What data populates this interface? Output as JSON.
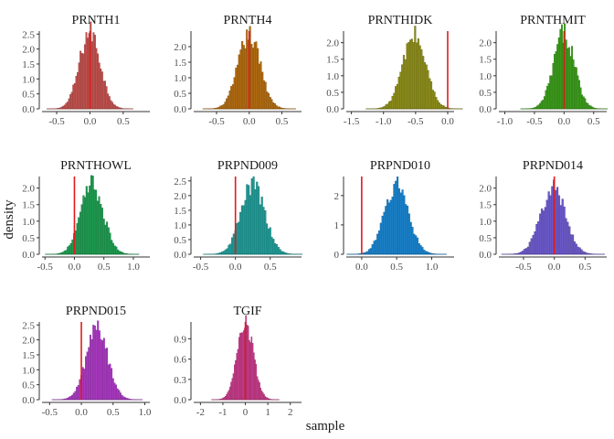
{
  "xlabel": "sample",
  "ylabel": "density",
  "ref_line_color": "#e41a1c",
  "chart_data": [
    {
      "type": "bar",
      "title": "PRNTH1",
      "color": "#c0504d",
      "mean": 0.0,
      "sd": 0.155,
      "ymax": 2.6,
      "xlim": [
        -0.72,
        0.9
      ],
      "xticks": [
        -0.5,
        0,
        0.5
      ],
      "xtick_labels": [
        "-0.5",
        "0.0",
        "0.5"
      ],
      "yticks": [
        0,
        0.5,
        1,
        1.5,
        2,
        2.5
      ],
      "ytick_labels": [
        "0.0",
        "0.5",
        "1.0",
        "1.5",
        "2.0",
        "2.5"
      ],
      "ref_x": 0.0
    },
    {
      "type": "bar",
      "title": "PRNTH4",
      "color": "#b06a10",
      "mean": 0.0,
      "sd": 0.17,
      "ymax": 2.5,
      "xlim": [
        -0.85,
        0.8
      ],
      "xticks": [
        -0.5,
        0,
        0.5
      ],
      "xtick_labels": [
        "-0.5",
        "0.0",
        "0.5"
      ],
      "yticks": [
        0,
        0.5,
        1,
        1.5,
        2
      ],
      "ytick_labels": [
        "0.0",
        "0.5",
        "1.0",
        "1.5",
        "2.0"
      ],
      "ref_x": 0.0
    },
    {
      "type": "bar",
      "title": "PRNTHIDK",
      "color": "#8b8b1a",
      "mean": -0.52,
      "sd": 0.18,
      "ymax": 2.35,
      "xlim": [
        -1.58,
        0.1
      ],
      "xticks": [
        -1.5,
        -1,
        -0.5,
        0
      ],
      "xtick_labels": [
        "-1.5",
        "-1.0",
        "-0.5",
        "0.0"
      ],
      "yticks": [
        0,
        0.5,
        1,
        1.5,
        2
      ],
      "ytick_labels": [
        "0.0",
        "0.5",
        "1.0",
        "1.5",
        "2.0"
      ],
      "ref_x": 0.0
    },
    {
      "type": "bar",
      "title": "PRNTHMIT",
      "color": "#3a9a1a",
      "mean": 0.0,
      "sd": 0.175,
      "ymax": 2.35,
      "xlim": [
        -1.1,
        0.72
      ],
      "xticks": [
        -1,
        -0.5,
        0,
        0.5
      ],
      "xtick_labels": [
        "-1.0",
        "-0.5",
        "0.0",
        "0.5"
      ],
      "yticks": [
        0,
        0.5,
        1,
        1.5,
        2
      ],
      "ytick_labels": [
        "0.0",
        "0.5",
        "1.0",
        "1.5",
        "2.0"
      ],
      "ref_x": 0.0
    },
    {
      "type": "bar",
      "title": "PRNTHOWL",
      "color": "#1e9a50",
      "mean": 0.3,
      "sd": 0.19,
      "ymax": 2.35,
      "xlim": [
        -0.55,
        1.28
      ],
      "xticks": [
        -0.5,
        0,
        0.5,
        1
      ],
      "xtick_labels": [
        "-0.5",
        "0.0",
        "0.5",
        "1.0"
      ],
      "yticks": [
        0,
        0.5,
        1,
        1.5,
        2
      ],
      "ytick_labels": [
        "0.0",
        "0.5",
        "1.0",
        "1.5",
        "2.0"
      ],
      "ref_x": 0.0
    },
    {
      "type": "bar",
      "title": "PRPND009",
      "color": "#1e9a96",
      "mean": 0.25,
      "sd": 0.17,
      "ymax": 2.65,
      "xlim": [
        -0.6,
        0.95
      ],
      "xticks": [
        -0.5,
        0,
        0.5
      ],
      "xtick_labels": [
        "-0.5",
        "0.0",
        "0.5"
      ],
      "yticks": [
        0,
        0.5,
        1,
        1.5,
        2,
        2.5
      ],
      "ytick_labels": [
        "0.0",
        "0.5",
        "1.0",
        "1.5",
        "2.0",
        "2.5"
      ],
      "ref_x": 0.0
    },
    {
      "type": "bar",
      "title": "PRPND010",
      "color": "#1a80c8",
      "mean": 0.5,
      "sd": 0.17,
      "ymax": 2.65,
      "xlim": [
        -0.22,
        1.32
      ],
      "xticks": [
        0,
        0.5,
        1
      ],
      "xtick_labels": [
        "0.0",
        "0.5",
        "1.0"
      ],
      "yticks": [
        0,
        1,
        2
      ],
      "ytick_labels": [
        "0",
        "1",
        "2"
      ],
      "ref_x": 0.0
    },
    {
      "type": "bar",
      "title": "PRPND014",
      "color": "#6a58c8",
      "mean": -0.02,
      "sd": 0.2,
      "ymax": 2.35,
      "xlim": [
        -0.9,
        0.85
      ],
      "xticks": [
        -0.5,
        0,
        0.5
      ],
      "xtick_labels": [
        "-0.5",
        "0.0",
        "0.5"
      ],
      "yticks": [
        0,
        0.5,
        1,
        1.5,
        2
      ],
      "ytick_labels": [
        "0.0",
        "0.5",
        "1.0",
        "1.5",
        "2.0"
      ],
      "ref_x": 0.0
    },
    {
      "type": "bar",
      "title": "PRPND015",
      "color": "#a838c0",
      "mean": 0.25,
      "sd": 0.17,
      "ymax": 2.6,
      "xlim": [
        -0.62,
        1.08
      ],
      "xticks": [
        -0.5,
        0,
        0.5,
        1
      ],
      "xtick_labels": [
        "-0.5",
        "0.0",
        "0.5",
        "1.0"
      ],
      "yticks": [
        0,
        0.5,
        1,
        1.5,
        2,
        2.5
      ],
      "ytick_labels": [
        "0.0",
        "0.5",
        "1.0",
        "1.5",
        "2.0",
        "2.5"
      ],
      "ref_x": 0.0
    },
    {
      "type": "bar",
      "title": "TGIF",
      "color": "#c83a8a",
      "mean": 0.0,
      "sd": 0.36,
      "ymax": 1.15,
      "xlim": [
        -2.3,
        2.5
      ],
      "xticks": [
        -2,
        -1,
        0,
        1,
        2
      ],
      "xtick_labels": [
        "-2",
        "-1",
        "0",
        "1",
        "2"
      ],
      "yticks": [
        0,
        0.3,
        0.6,
        0.9
      ],
      "ytick_labels": [
        "0.0",
        "0.3",
        "0.6",
        "0.9"
      ],
      "ref_x": 0.0
    }
  ]
}
